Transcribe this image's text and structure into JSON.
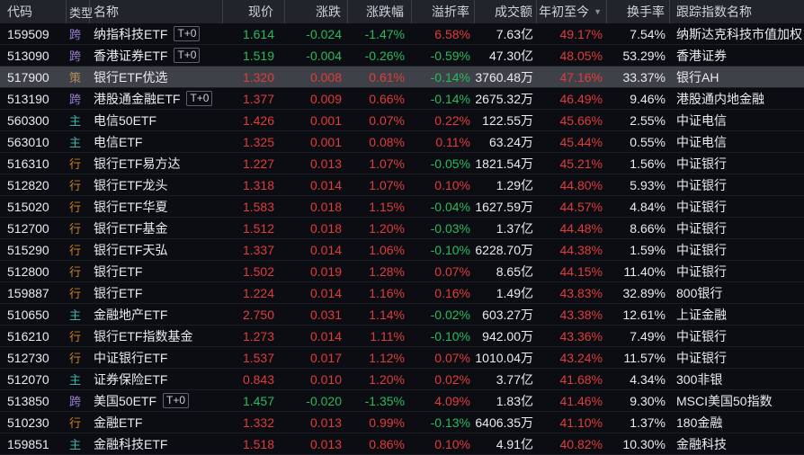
{
  "colors": {
    "bg": "#0b0d12",
    "header-bg": "#22242c",
    "header-text": "#ced2da",
    "header-border": "#3c3f48",
    "row-border": "#1a1d23",
    "highlight-bg": "#3e4147",
    "text": "#e9ebef",
    "up": "#e23b3b",
    "down": "#2aba5c",
    "badge-border": "#5c606a",
    "badge-text": "#c9cdd5",
    "sort-icon": "#8b919c"
  },
  "t0_badge": "T+0",
  "type_colors": {
    "跨": "#9a7fd1",
    "策": "#b08d5a",
    "主": "#3eb3a9",
    "行": "#c87f2a"
  },
  "table": {
    "columns": [
      {
        "key": "code",
        "label": "代码"
      },
      {
        "key": "type",
        "label": "类型"
      },
      {
        "key": "name",
        "label": "名称"
      },
      {
        "key": "price",
        "label": "现价"
      },
      {
        "key": "change",
        "label": "涨跌"
      },
      {
        "key": "change_pct",
        "label": "涨跌幅"
      },
      {
        "key": "premium_rate",
        "label": "溢折率"
      },
      {
        "key": "turnover",
        "label": "成交额"
      },
      {
        "key": "ytd",
        "label": "年初至今",
        "sort": "desc"
      },
      {
        "key": "turnover_rate",
        "label": "换手率"
      },
      {
        "key": "index_name",
        "label": "跟踪指数名称"
      }
    ],
    "rows": [
      {
        "code": "159509",
        "type": "跨",
        "name": "纳指科技ETF",
        "t0": true,
        "price": "1.614",
        "change": "-0.024",
        "change_pct": "-1.47%",
        "premium_rate": "6.58%",
        "turnover": "7.63亿",
        "ytd": "49.17%",
        "turnover_rate": "7.54%",
        "index_name": "纳斯达克科技市值加权"
      },
      {
        "code": "513090",
        "type": "跨",
        "name": "香港证券ETF",
        "t0": true,
        "price": "1.519",
        "change": "-0.004",
        "change_pct": "-0.26%",
        "premium_rate": "-0.59%",
        "turnover": "47.30亿",
        "ytd": "48.05%",
        "turnover_rate": "53.29%",
        "index_name": "香港证券"
      },
      {
        "code": "517900",
        "type": "策",
        "name": "银行ETF优选",
        "t0": false,
        "price": "1.320",
        "change": "0.008",
        "change_pct": "0.61%",
        "premium_rate": "-0.14%",
        "turnover": "3760.48万",
        "ytd": "47.16%",
        "turnover_rate": "33.37%",
        "index_name": "银行AH",
        "highlighted": true
      },
      {
        "code": "513190",
        "type": "跨",
        "name": "港股通金融ETF",
        "t0": true,
        "price": "1.377",
        "change": "0.009",
        "change_pct": "0.66%",
        "premium_rate": "-0.14%",
        "turnover": "2675.32万",
        "ytd": "46.49%",
        "turnover_rate": "9.46%",
        "index_name": "港股通内地金融"
      },
      {
        "code": "560300",
        "type": "主",
        "name": "电信50ETF",
        "t0": false,
        "price": "1.426",
        "change": "0.001",
        "change_pct": "0.07%",
        "premium_rate": "0.22%",
        "turnover": "122.55万",
        "ytd": "45.66%",
        "turnover_rate": "2.55%",
        "index_name": "中证电信"
      },
      {
        "code": "563010",
        "type": "主",
        "name": "电信ETF",
        "t0": false,
        "price": "1.325",
        "change": "0.001",
        "change_pct": "0.08%",
        "premium_rate": "0.11%",
        "turnover": "63.24万",
        "ytd": "45.44%",
        "turnover_rate": "0.55%",
        "index_name": "中证电信"
      },
      {
        "code": "516310",
        "type": "行",
        "name": "银行ETF易方达",
        "t0": false,
        "price": "1.227",
        "change": "0.013",
        "change_pct": "1.07%",
        "premium_rate": "-0.05%",
        "turnover": "1821.54万",
        "ytd": "45.21%",
        "turnover_rate": "1.56%",
        "index_name": "中证银行"
      },
      {
        "code": "512820",
        "type": "行",
        "name": "银行ETF龙头",
        "t0": false,
        "price": "1.318",
        "change": "0.014",
        "change_pct": "1.07%",
        "premium_rate": "0.10%",
        "turnover": "1.29亿",
        "ytd": "44.80%",
        "turnover_rate": "5.93%",
        "index_name": "中证银行"
      },
      {
        "code": "515020",
        "type": "行",
        "name": "银行ETF华夏",
        "t0": false,
        "price": "1.583",
        "change": "0.018",
        "change_pct": "1.15%",
        "premium_rate": "-0.04%",
        "turnover": "1627.59万",
        "ytd": "44.57%",
        "turnover_rate": "4.84%",
        "index_name": "中证银行"
      },
      {
        "code": "512700",
        "type": "行",
        "name": "银行ETF基金",
        "t0": false,
        "price": "1.512",
        "change": "0.018",
        "change_pct": "1.20%",
        "premium_rate": "-0.03%",
        "turnover": "1.37亿",
        "ytd": "44.48%",
        "turnover_rate": "8.66%",
        "index_name": "中证银行"
      },
      {
        "code": "515290",
        "type": "行",
        "name": "银行ETF天弘",
        "t0": false,
        "price": "1.337",
        "change": "0.014",
        "change_pct": "1.06%",
        "premium_rate": "-0.10%",
        "turnover": "6228.70万",
        "ytd": "44.38%",
        "turnover_rate": "1.59%",
        "index_name": "中证银行"
      },
      {
        "code": "512800",
        "type": "行",
        "name": "银行ETF",
        "t0": false,
        "price": "1.502",
        "change": "0.019",
        "change_pct": "1.28%",
        "premium_rate": "0.07%",
        "turnover": "8.65亿",
        "ytd": "44.15%",
        "turnover_rate": "11.40%",
        "index_name": "中证银行"
      },
      {
        "code": "159887",
        "type": "行",
        "name": "银行ETF",
        "t0": false,
        "price": "1.224",
        "change": "0.014",
        "change_pct": "1.16%",
        "premium_rate": "0.16%",
        "turnover": "1.49亿",
        "ytd": "43.83%",
        "turnover_rate": "32.89%",
        "index_name": "800银行"
      },
      {
        "code": "510650",
        "type": "主",
        "name": "金融地产ETF",
        "t0": false,
        "price": "2.750",
        "change": "0.031",
        "change_pct": "1.14%",
        "premium_rate": "-0.02%",
        "turnover": "603.27万",
        "ytd": "43.38%",
        "turnover_rate": "12.61%",
        "index_name": "上证金融"
      },
      {
        "code": "516210",
        "type": "行",
        "name": "银行ETF指数基金",
        "t0": false,
        "price": "1.273",
        "change": "0.014",
        "change_pct": "1.11%",
        "premium_rate": "-0.10%",
        "turnover": "942.00万",
        "ytd": "43.36%",
        "turnover_rate": "7.49%",
        "index_name": "中证银行"
      },
      {
        "code": "512730",
        "type": "行",
        "name": "中证银行ETF",
        "t0": false,
        "price": "1.537",
        "change": "0.017",
        "change_pct": "1.12%",
        "premium_rate": "0.07%",
        "turnover": "1010.04万",
        "ytd": "43.24%",
        "turnover_rate": "11.57%",
        "index_name": "中证银行"
      },
      {
        "code": "512070",
        "type": "主",
        "name": "证券保险ETF",
        "t0": false,
        "price": "0.843",
        "change": "0.010",
        "change_pct": "1.20%",
        "premium_rate": "0.02%",
        "turnover": "3.77亿",
        "ytd": "41.68%",
        "turnover_rate": "4.34%",
        "index_name": "300非银"
      },
      {
        "code": "513850",
        "type": "跨",
        "name": "美国50ETF",
        "t0": true,
        "price": "1.457",
        "change": "-0.020",
        "change_pct": "-1.35%",
        "premium_rate": "4.09%",
        "turnover": "1.83亿",
        "ytd": "41.46%",
        "turnover_rate": "9.30%",
        "index_name": "MSCI美国50指数"
      },
      {
        "code": "510230",
        "type": "行",
        "name": "金融ETF",
        "t0": false,
        "price": "1.332",
        "change": "0.013",
        "change_pct": "0.99%",
        "premium_rate": "-0.13%",
        "turnover": "6406.35万",
        "ytd": "41.10%",
        "turnover_rate": "1.37%",
        "index_name": "180金融"
      },
      {
        "code": "159851",
        "type": "主",
        "name": "金融科技ETF",
        "t0": false,
        "price": "1.518",
        "change": "0.013",
        "change_pct": "0.86%",
        "premium_rate": "0.10%",
        "turnover": "4.91亿",
        "ytd": "40.82%",
        "turnover_rate": "10.30%",
        "index_name": "金融科技"
      }
    ]
  }
}
